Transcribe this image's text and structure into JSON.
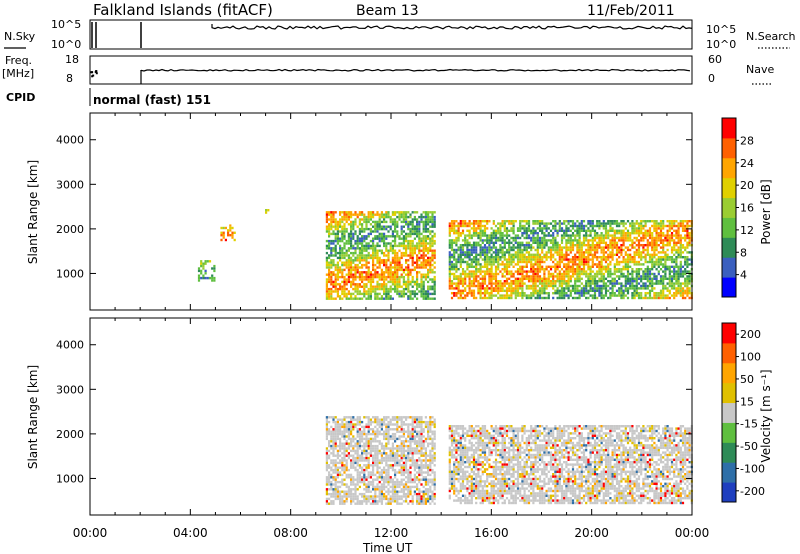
{
  "header": {
    "station": "Falkland Islands (fitACF)",
    "beam": "Beam 13",
    "date": "11/Feb/2011"
  },
  "panels": {
    "nsky": {
      "label": "N.Sky",
      "ytick_top": "10^5",
      "ytick_bottom": "10^0",
      "right_label": "N.Search",
      "right_tick_top": "10^5",
      "right_tick_bottom": "10^0"
    },
    "freq": {
      "label_line1": "Freq.",
      "label_line2": "[MHz]",
      "ytick_top": "18",
      "ytick_bottom": "8",
      "right_label": "Nave",
      "right_tick_top": "60",
      "right_tick_bottom": "0"
    },
    "cpid": {
      "label": "CPID",
      "text": "normal (fast) 151"
    }
  },
  "colors": {
    "power_scale": [
      "#0000ff",
      "#3a5fbf",
      "#2e8b57",
      "#5fbf3f",
      "#9acd32",
      "#e0d000",
      "#ffa500",
      "#ff6000",
      "#ff0000"
    ],
    "velocity_scale": [
      "#1f3fbf",
      "#2e6fa8",
      "#2e8b57",
      "#5fbf3f",
      "#c8c8c8",
      "#e0c000",
      "#ffa500",
      "#ff6000",
      "#ff0000"
    ],
    "ground_scatter": "#c8c8c8"
  },
  "chart_data": [
    {
      "type": "heatmap",
      "title": "",
      "xlabel": "Time UT",
      "ylabel": "Slant Range [km]",
      "xticks": [
        "00:00",
        "04:00",
        "08:00",
        "12:00",
        "16:00",
        "20:00",
        "00:00"
      ],
      "xlim_hours": [
        0,
        24
      ],
      "yticks": [
        1000,
        2000,
        3000,
        4000
      ],
      "ylim": [
        180,
        4600
      ],
      "colorbar": {
        "label": "Power [dB]",
        "ticks": [
          4,
          8,
          12,
          16,
          20,
          24,
          28
        ],
        "range": [
          0,
          32
        ]
      },
      "regions": [
        {
          "t0": 9.4,
          "t1": 13.8,
          "r0": 400,
          "r1": 2400,
          "value": 18
        },
        {
          "t0": 14.3,
          "t1": 24.0,
          "r0": 400,
          "r1": 2200,
          "value": 16
        },
        {
          "t0": 6.8,
          "t1": 7.2,
          "r0": 2300,
          "r1": 2500,
          "value": 20
        },
        {
          "t0": 5.2,
          "t1": 5.8,
          "r0": 1700,
          "r1": 2100,
          "value": 12
        },
        {
          "t0": 4.3,
          "t1": 5.0,
          "r0": 800,
          "r1": 1300,
          "value": 10
        }
      ]
    },
    {
      "type": "heatmap",
      "title": "",
      "xlabel": "Time UT",
      "ylabel": "Slant Range [km]",
      "xticks": [
        "00:00",
        "04:00",
        "08:00",
        "12:00",
        "16:00",
        "20:00",
        "00:00"
      ],
      "xlim_hours": [
        0,
        24
      ],
      "yticks": [
        1000,
        2000,
        3000,
        4000
      ],
      "ylim": [
        180,
        4600
      ],
      "colorbar": {
        "label": "Velocity [m s⁻¹]",
        "ticks": [
          200,
          100,
          50,
          15,
          -15,
          -50,
          -100,
          -200
        ],
        "range": [
          -250,
          250
        ]
      },
      "regions": [
        {
          "t0": 9.4,
          "t1": 13.8,
          "r0": 400,
          "r1": 2400,
          "value": 0
        },
        {
          "t0": 14.3,
          "t1": 24.0,
          "r0": 400,
          "r1": 2200,
          "value": 0
        }
      ]
    }
  ]
}
